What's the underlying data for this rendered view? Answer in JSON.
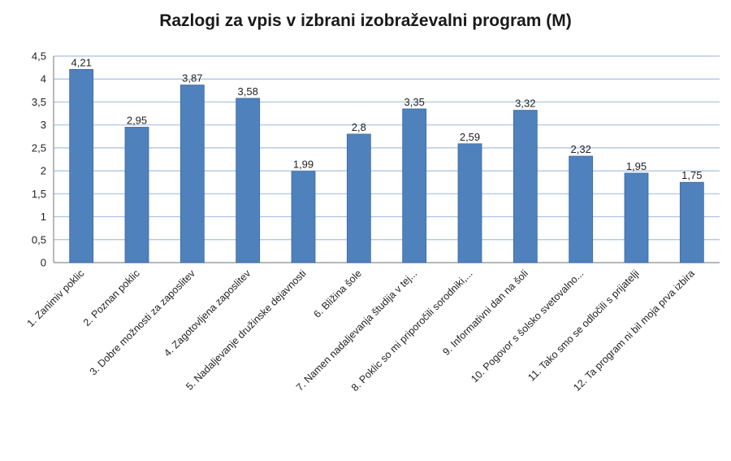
{
  "chart_data": {
    "type": "bar",
    "title": "Razlogi za vpis v izbrani izobraževalni program (M)",
    "xlabel": "",
    "ylabel": "",
    "ylim": [
      0,
      4.5
    ],
    "yticks": [
      "0",
      "0,5",
      "1",
      "1,5",
      "2",
      "2,5",
      "3",
      "3,5",
      "4",
      "4,5"
    ],
    "grid": true,
    "legend": "none",
    "bar_color": "#4f81bd",
    "grid_color": "#a8c1e0",
    "categories": [
      "1. Zanimiv poklic",
      "2. Poznan poklic",
      "3. Dobre možnosti za zaposlitev",
      "4. Zagotovljena zaposlitev",
      "5. Nadaljevanje družinske dejavnosti",
      "6. Bližina šole",
      "7. Namen nadaljevanja študija v tej...",
      "8. Poklic so mi priporočili sorodniki,...",
      "9. Informativni dan na šoli",
      "10. Pogovor s šolsko svetovalno...",
      "11. Tako smo se odločili s prijatelji",
      "12. Ta program ni bil moja prva izbira"
    ],
    "values": [
      4.21,
      2.95,
      3.87,
      3.58,
      1.99,
      2.8,
      3.35,
      2.59,
      3.32,
      2.32,
      1.95,
      1.75
    ],
    "value_labels": [
      "4,21",
      "2,95",
      "3,87",
      "3,58",
      "1,99",
      "2,8",
      "3,35",
      "2,59",
      "3,32",
      "2,32",
      "1,95",
      "1,75"
    ]
  }
}
